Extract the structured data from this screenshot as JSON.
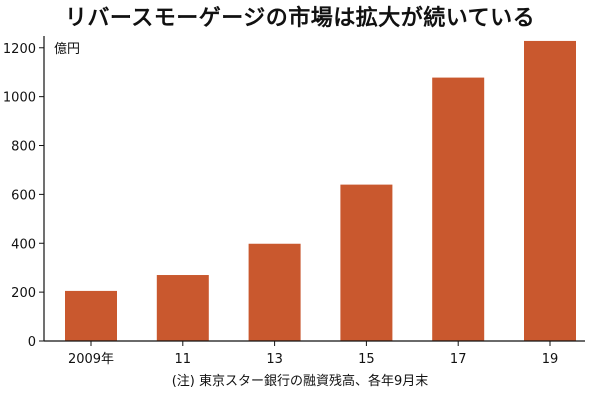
{
  "chart_data": {
    "type": "bar",
    "title": "リバースモーゲージの市場は拡大が続いている",
    "unit_label": "億円",
    "categories": [
      "2009年",
      "11",
      "13",
      "15",
      "17",
      "19"
    ],
    "values": [
      205,
      270,
      398,
      640,
      1078,
      1228
    ],
    "ylim": [
      0,
      1240
    ],
    "yticks": [
      0,
      200,
      400,
      600,
      800,
      1000,
      1200
    ],
    "grid": false,
    "bar_color": "#c9582e",
    "note": "(注) 東京スター銀行の融資残高、各年9月末"
  }
}
